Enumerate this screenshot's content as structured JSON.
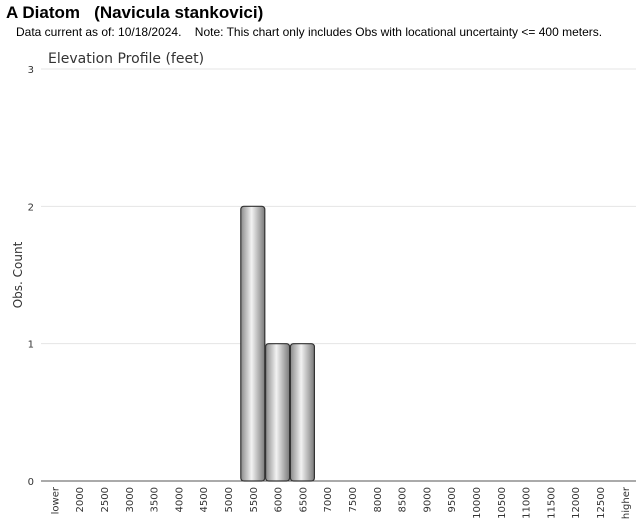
{
  "page": {
    "title": "A Diatom   (Navicula stankovici)",
    "note": "Data current as of: 10/18/2024.    Note: This chart only includes Obs with locational uncertainty <= 400 meters."
  },
  "chart_data": {
    "type": "bar",
    "title": "Elevation Profile (feet)",
    "xlabel": "",
    "ylabel": "Obs. Count",
    "categories": [
      "lower",
      "2000",
      "2500",
      "3000",
      "3500",
      "4000",
      "4500",
      "5000",
      "5500",
      "6000",
      "6500",
      "7000",
      "7500",
      "8000",
      "8500",
      "9000",
      "9500",
      "10000",
      "10500",
      "11000",
      "11500",
      "12000",
      "12500",
      "higher"
    ],
    "values": [
      0,
      0,
      0,
      0,
      0,
      0,
      0,
      0,
      2,
      1,
      1,
      0,
      0,
      0,
      0,
      0,
      0,
      0,
      0,
      0,
      0,
      0,
      0,
      0
    ],
    "ylim": [
      0,
      3
    ],
    "yticks": [
      0,
      1,
      2,
      3
    ],
    "grid": true,
    "bar_color": "#b8b8b8"
  }
}
